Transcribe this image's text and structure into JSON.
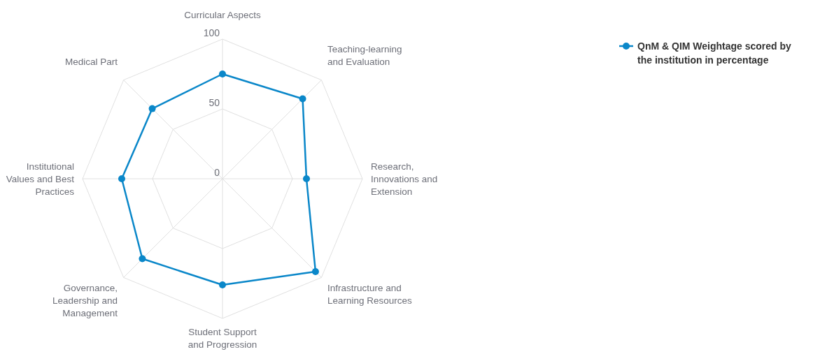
{
  "chart_data": {
    "type": "radar",
    "categories": [
      "Curricular Aspects",
      "Teaching-learning and Evaluation",
      "Research, Innovations and Extension",
      "Infrastructure and Learning Resources",
      "Student Support and Progression",
      "Governance, Leadership and Management",
      "Institutional Values and Best Practices",
      "Medical Part"
    ],
    "series": [
      {
        "name": "QnM & QIM Weightage scored by the institution in percentage",
        "color": "#0a87c9",
        "values": [
          75,
          81,
          60,
          94,
          76,
          81,
          72,
          71
        ]
      }
    ],
    "ylim": [
      0,
      100
    ],
    "yticks": [
      0,
      50,
      100
    ],
    "grid": true,
    "legend": "top right",
    "marker": "circle",
    "line_style": "solid"
  }
}
